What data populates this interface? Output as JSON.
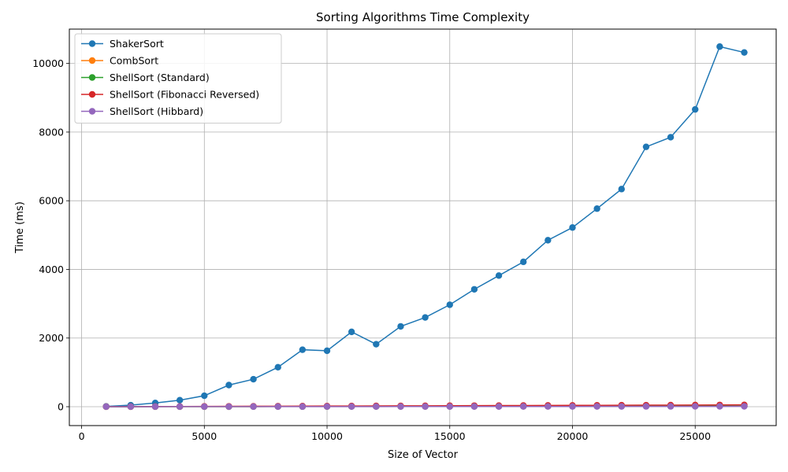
{
  "chart_data": {
    "type": "line",
    "title": "Sorting Algorithms Time Complexity",
    "xlabel": "Size of Vector",
    "ylabel": "Time (ms)",
    "xlim": [
      -500,
      28300
    ],
    "ylim": [
      -550,
      11000
    ],
    "xticks": [
      0,
      5000,
      10000,
      15000,
      20000,
      25000
    ],
    "yticks": [
      0,
      2000,
      4000,
      6000,
      8000,
      10000
    ],
    "grid": true,
    "legend_position": "top-left",
    "x": [
      1000,
      2000,
      3000,
      4000,
      5000,
      6000,
      7000,
      8000,
      9000,
      10000,
      11000,
      12000,
      13000,
      14000,
      15000,
      16000,
      17000,
      18000,
      19000,
      20000,
      21000,
      22000,
      23000,
      24000,
      25000,
      26000,
      27000
    ],
    "series": [
      {
        "name": "ShakerSort",
        "color": "#1f77b4",
        "values": [
          10,
          45,
          110,
          190,
          320,
          630,
          800,
          1150,
          1660,
          1630,
          2180,
          1820,
          2340,
          2600,
          2970,
          3420,
          3820,
          4220,
          4850,
          5220,
          5770,
          6340,
          7570,
          7850,
          8660,
          10490,
          10320
        ]
      },
      {
        "name": "CombSort",
        "color": "#ff7f0e",
        "values": [
          1,
          1,
          2,
          2,
          3,
          3,
          4,
          5,
          5,
          6,
          7,
          7,
          8,
          9,
          9,
          10,
          11,
          11,
          12,
          13,
          14,
          15,
          16,
          17,
          18,
          20,
          21
        ]
      },
      {
        "name": "ShellSort (Standard)",
        "color": "#2ca02c",
        "values": [
          1,
          1,
          2,
          2,
          3,
          3,
          4,
          5,
          5,
          6,
          7,
          7,
          8,
          9,
          9,
          10,
          11,
          12,
          12,
          13,
          14,
          15,
          16,
          17,
          18,
          20,
          21
        ]
      },
      {
        "name": "ShellSort (Fibonacci Reversed)",
        "color": "#d62728",
        "values": [
          2,
          3,
          5,
          7,
          9,
          11,
          13,
          15,
          17,
          19,
          21,
          23,
          25,
          27,
          29,
          31,
          33,
          35,
          37,
          39,
          41,
          43,
          45,
          47,
          49,
          51,
          53
        ]
      },
      {
        "name": "ShellSort (Hibbard)",
        "color": "#9467bd",
        "values": [
          1,
          1,
          1,
          2,
          2,
          2,
          3,
          3,
          3,
          4,
          4,
          4,
          5,
          5,
          5,
          6,
          6,
          7,
          7,
          7,
          8,
          8,
          9,
          9,
          10,
          10,
          11
        ]
      }
    ]
  }
}
